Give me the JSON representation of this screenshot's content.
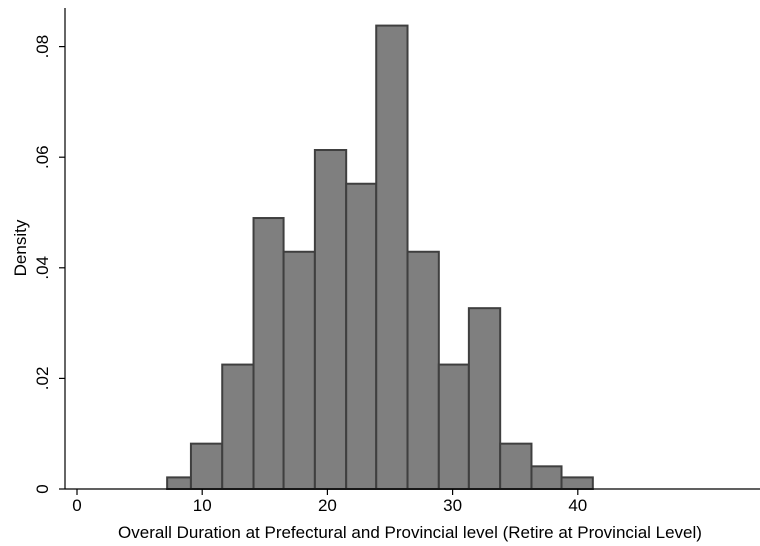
{
  "chart_data": {
    "type": "bar",
    "subtype": "histogram",
    "xlabel": "Overall Duration at Prefectural and Provincial level (Retire at Provincial Level)",
    "ylabel": "Density",
    "xlim": [
      0,
      40
    ],
    "ylim": [
      0,
      0.084
    ],
    "x_ticks": [
      0,
      10,
      20,
      30,
      40
    ],
    "x_tick_labels": [
      "0",
      "10",
      "20",
      "30",
      "40"
    ],
    "y_ticks": [
      0,
      0.02,
      0.04,
      0.06,
      0.08
    ],
    "y_tick_labels": [
      "0",
      ".02",
      ".04",
      ".06",
      ".08"
    ],
    "grid": false,
    "bar_color": "#7f7f7f",
    "bar_edge_color": "#3f3f3f",
    "bins": [
      {
        "start": 7.2,
        "end": 9.1,
        "value": 0.0021
      },
      {
        "start": 9.1,
        "end": 11.6,
        "value": 0.0082
      },
      {
        "start": 11.6,
        "end": 14.1,
        "value": 0.0225
      },
      {
        "start": 14.1,
        "end": 16.5,
        "value": 0.049
      },
      {
        "start": 16.5,
        "end": 19.0,
        "value": 0.0429
      },
      {
        "start": 19.0,
        "end": 21.5,
        "value": 0.0613
      },
      {
        "start": 21.5,
        "end": 23.9,
        "value": 0.0552
      },
      {
        "start": 23.9,
        "end": 26.4,
        "value": 0.0838
      },
      {
        "start": 26.4,
        "end": 28.9,
        "value": 0.0429
      },
      {
        "start": 28.9,
        "end": 31.3,
        "value": 0.0225
      },
      {
        "start": 31.3,
        "end": 33.8,
        "value": 0.0327
      },
      {
        "start": 33.8,
        "end": 36.3,
        "value": 0.0082
      },
      {
        "start": 36.3,
        "end": 38.7,
        "value": 0.0041
      },
      {
        "start": 38.7,
        "end": 41.2,
        "value": 0.0021
      }
    ]
  }
}
